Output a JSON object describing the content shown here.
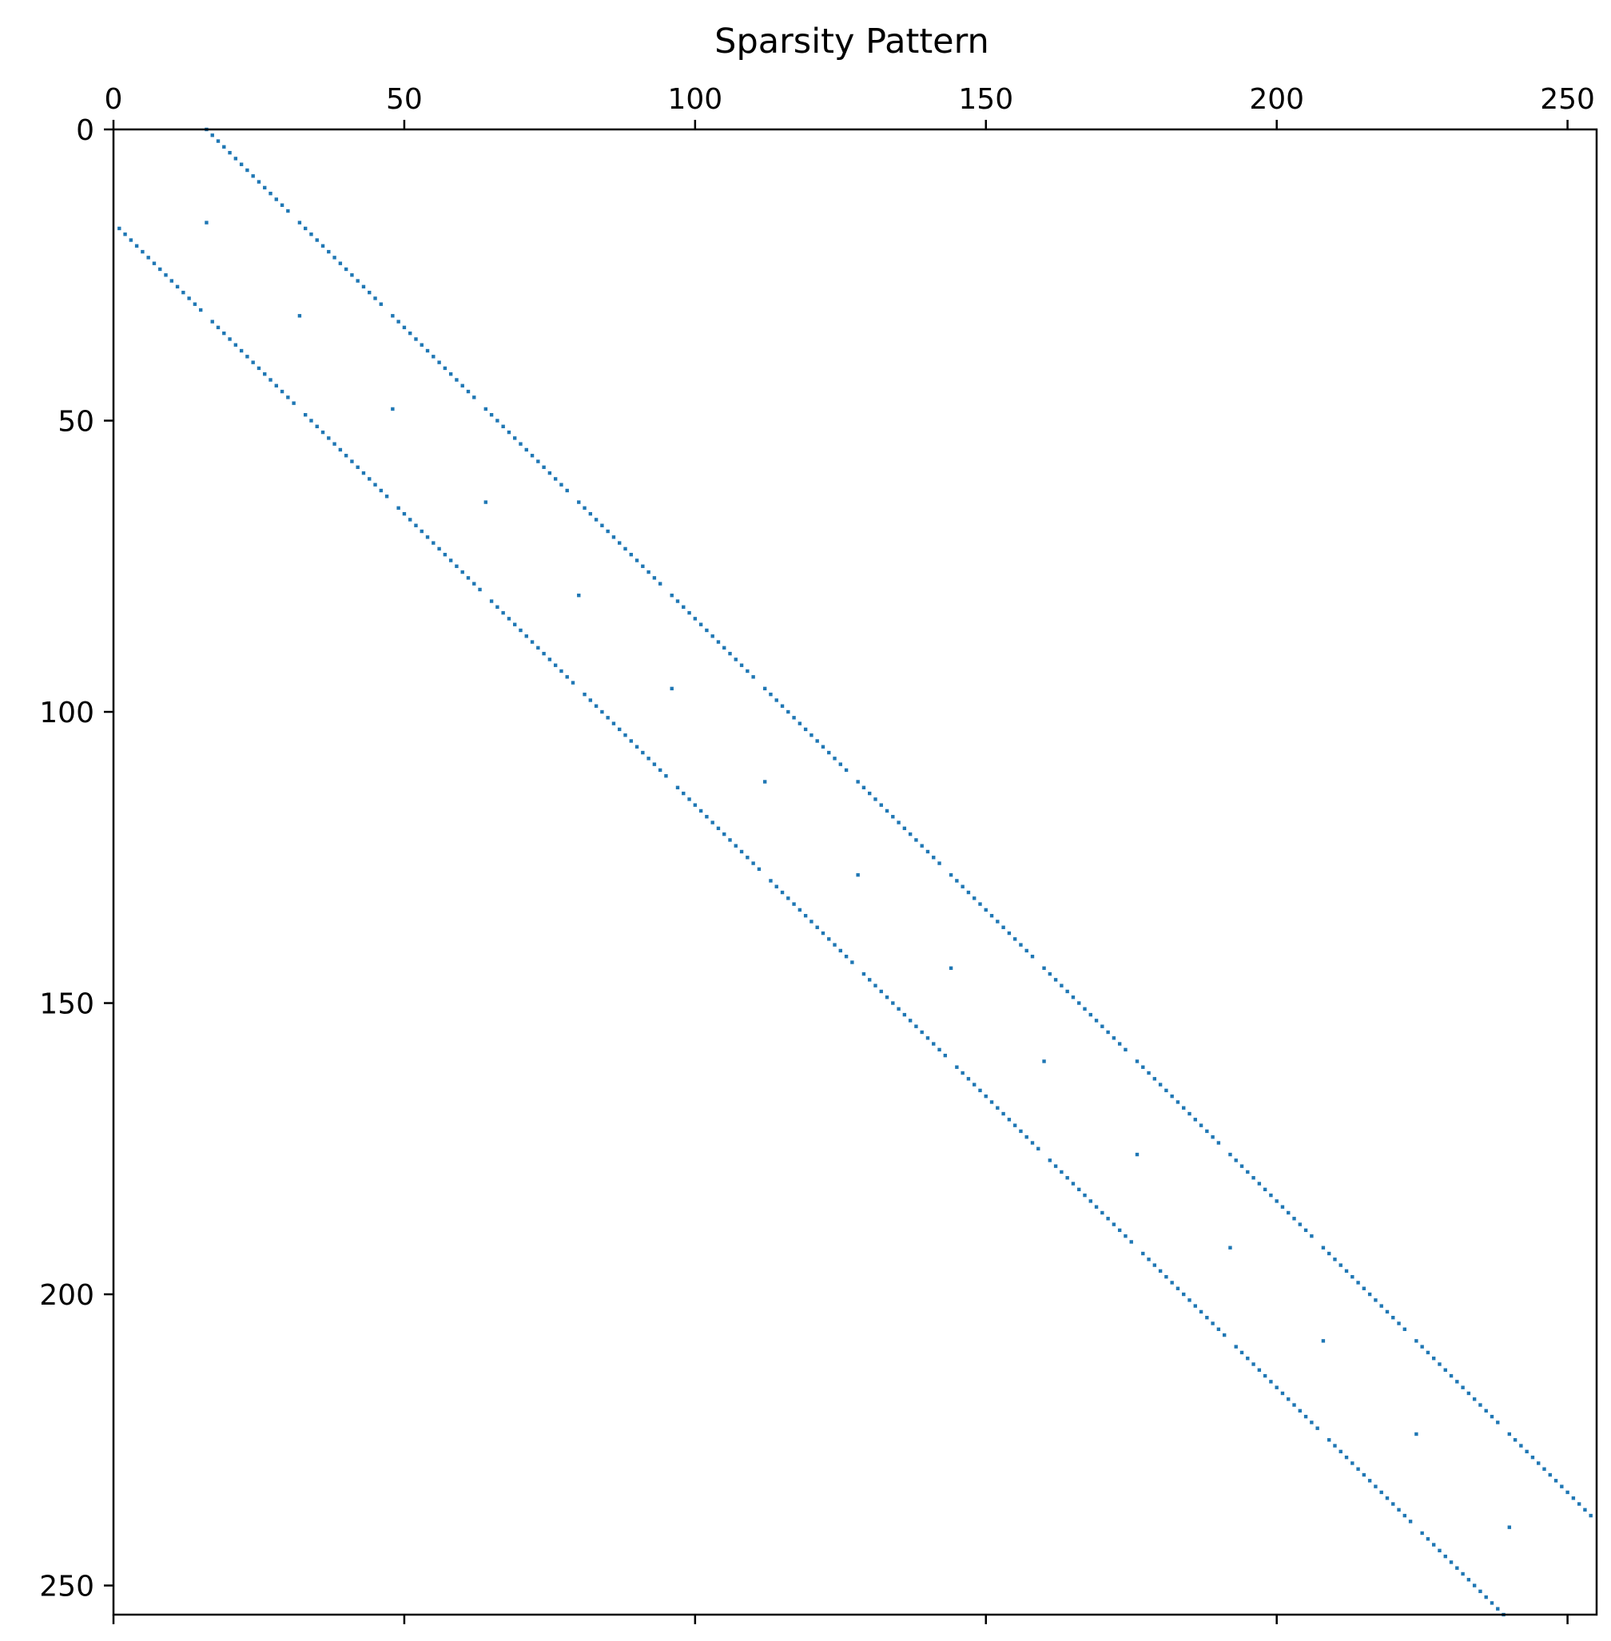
{
  "chart_data": {
    "type": "heatmap",
    "title": "Sparsity Pattern",
    "xlabel": "",
    "ylabel": "",
    "matrix_size": [
      256,
      256
    ],
    "x_ticks": [
      0,
      50,
      100,
      150,
      200,
      250
    ],
    "y_ticks": [
      0,
      50,
      100,
      150,
      200,
      250
    ],
    "x_tick_labels": [
      "0",
      "50",
      "100",
      "150",
      "200",
      "250"
    ],
    "y_tick_labels": [
      "0",
      "50",
      "100",
      "150",
      "200",
      "250"
    ],
    "xlim": [
      0,
      255
    ],
    "ylim": [
      255,
      0
    ],
    "x_axis_position": "top",
    "grid": false,
    "marker_color": "#1f77b4",
    "block_size": 16,
    "diagonals": [
      {
        "name": "upper",
        "offset": 16,
        "missing_every_block": true
      },
      {
        "name": "lower",
        "offset": -16,
        "missing_every_block": true
      }
    ],
    "isolated_points": [
      {
        "row": 16,
        "col": 16
      },
      {
        "row": 32,
        "col": 32
      },
      {
        "row": 48,
        "col": 48
      },
      {
        "row": 64,
        "col": 64
      },
      {
        "row": 80,
        "col": 80
      },
      {
        "row": 96,
        "col": 96
      },
      {
        "row": 112,
        "col": 112
      },
      {
        "row": 128,
        "col": 128
      },
      {
        "row": 144,
        "col": 144
      },
      {
        "row": 160,
        "col": 160
      },
      {
        "row": 176,
        "col": 176
      },
      {
        "row": 192,
        "col": 192
      },
      {
        "row": 208,
        "col": 208
      },
      {
        "row": 224,
        "col": 224
      },
      {
        "row": 240,
        "col": 240
      }
    ]
  }
}
